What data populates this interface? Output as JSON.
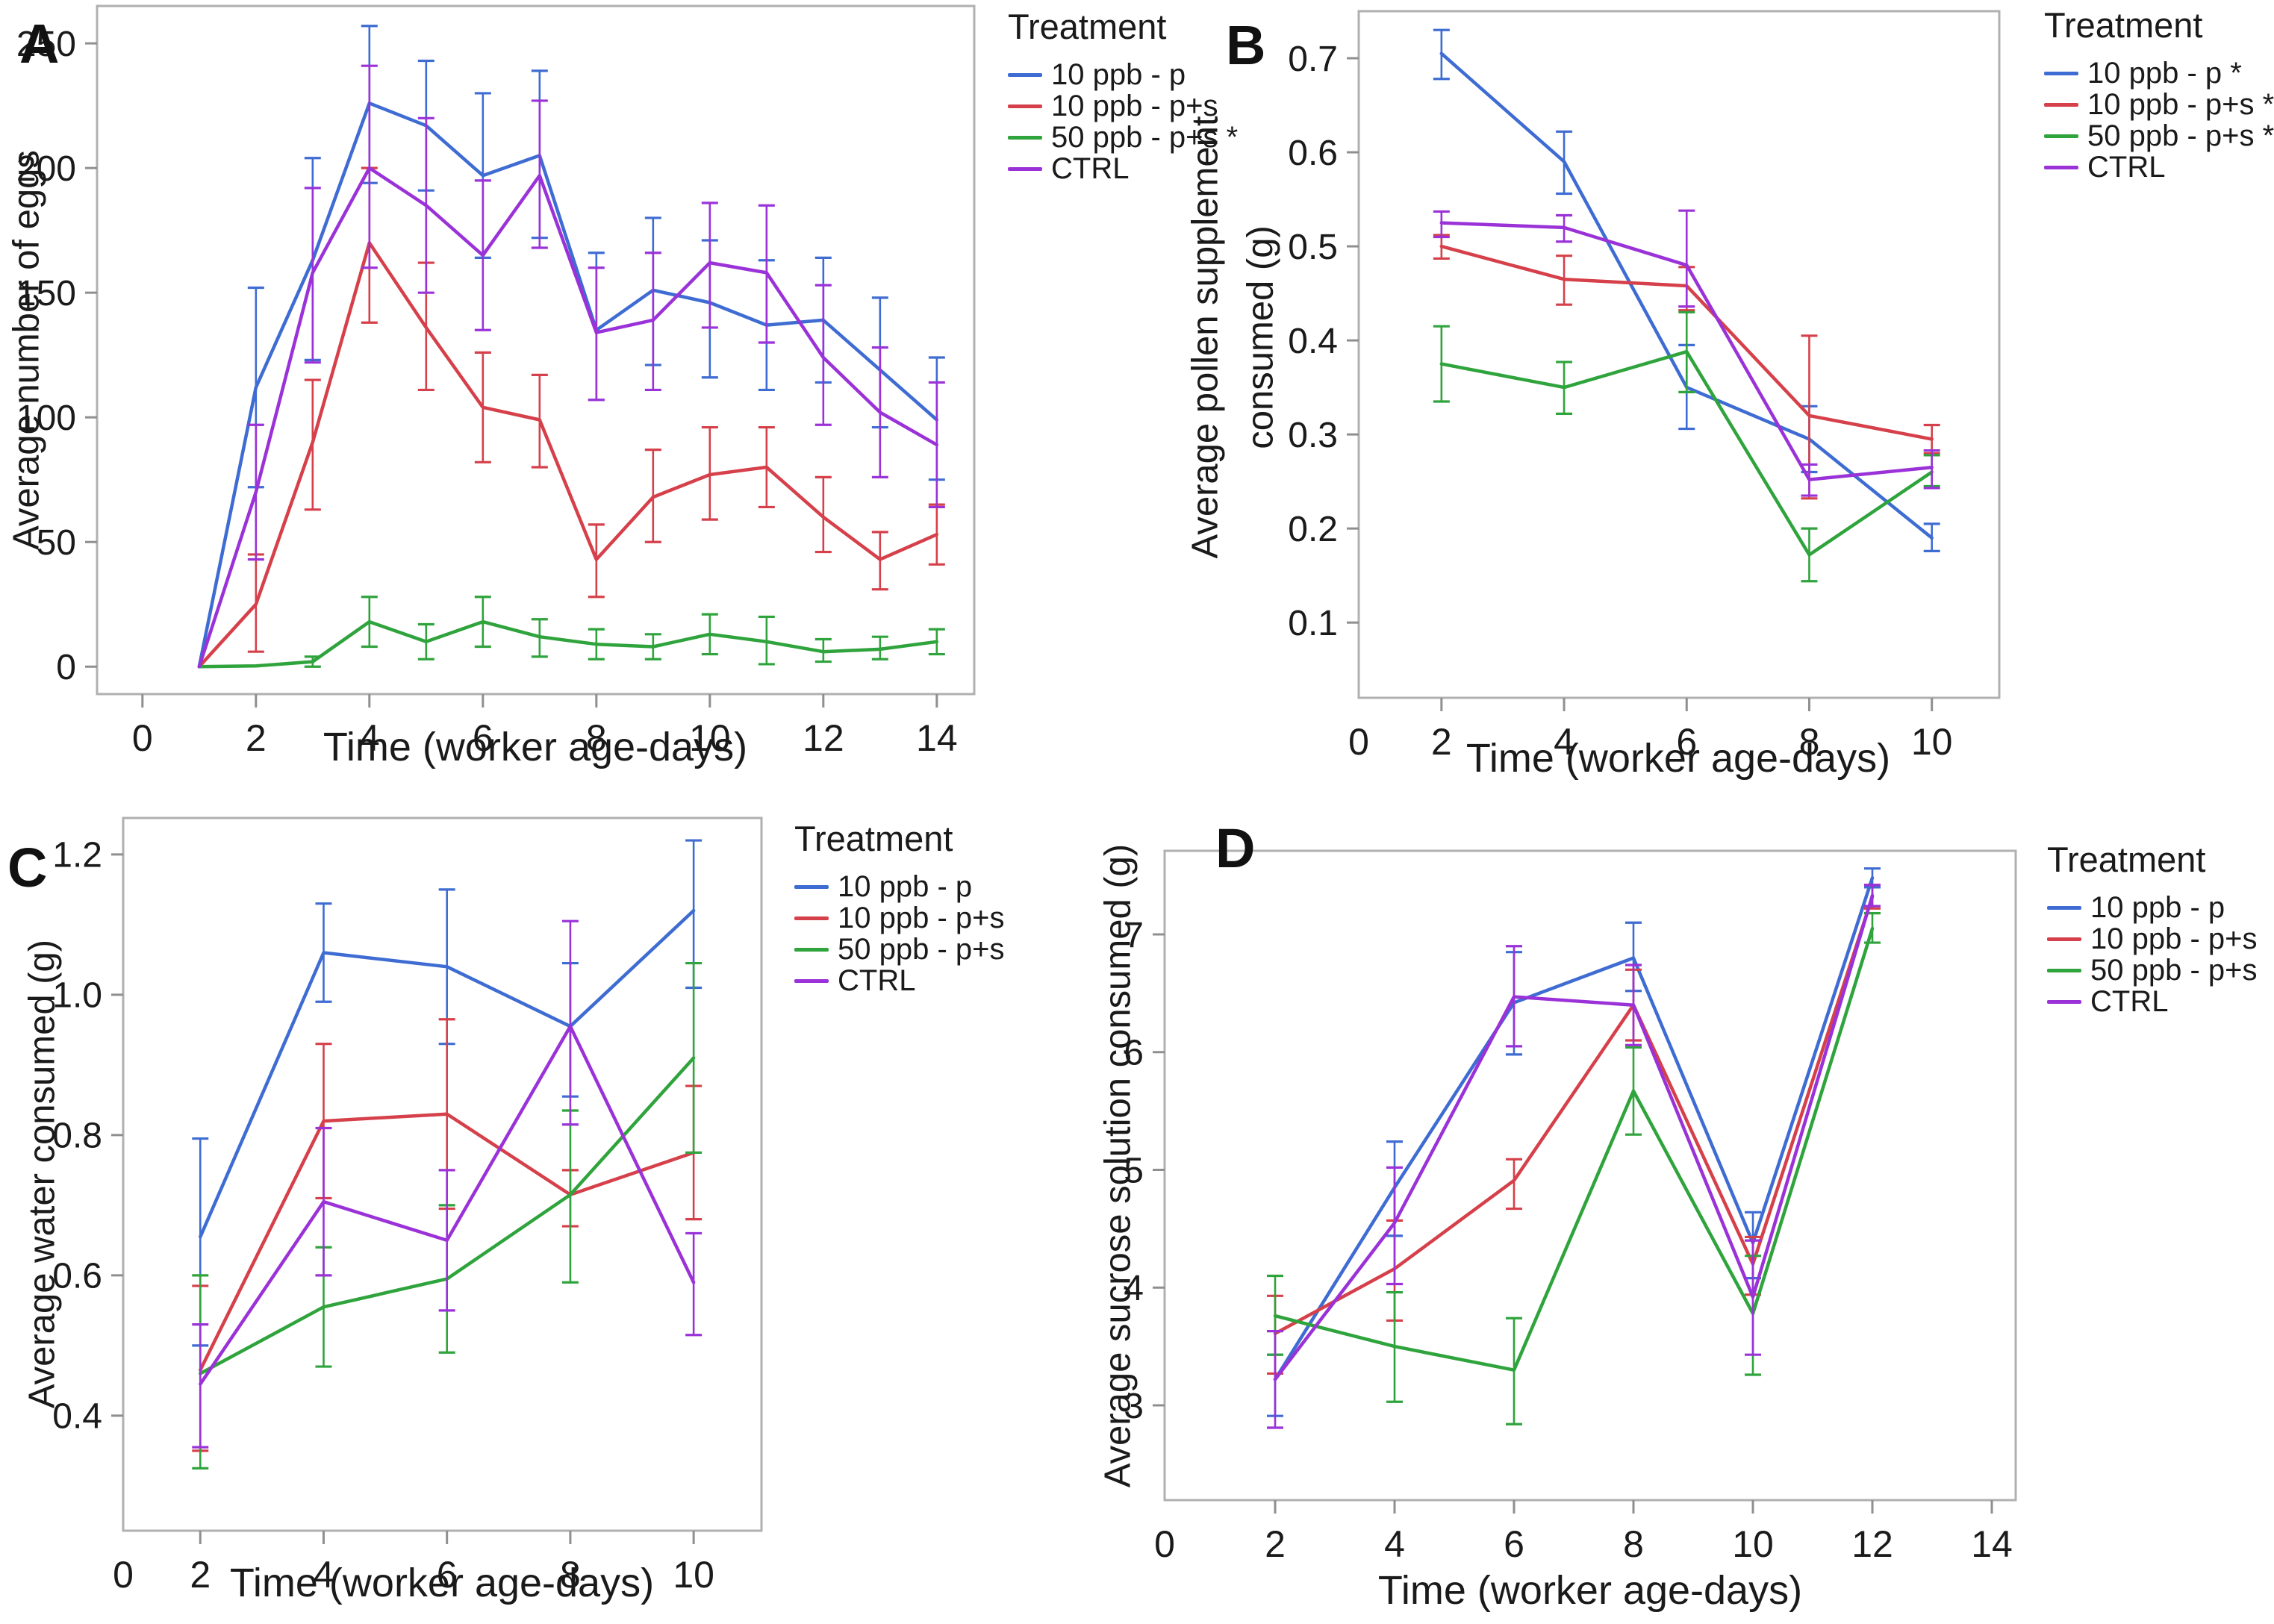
{
  "figure_type": "four-panel line chart with error bars",
  "chart_data": [
    {
      "id": "A",
      "panel_label": "A",
      "type": "line",
      "xlabel": "Time (worker age-days)",
      "ylabel_lines": [
        "Average number of eggs"
      ],
      "legend_title": "Treatment",
      "legend_position": "right",
      "grid": false,
      "xlim": [
        -0.8,
        14.66
      ],
      "ylim": [
        -11,
        265
      ],
      "xticks": [
        0,
        2,
        4,
        6,
        8,
        10,
        12,
        14
      ],
      "xtick_labels": [
        "0",
        "2",
        "4",
        "6",
        "8",
        "10",
        "12",
        "14"
      ],
      "yticks": [
        0,
        50,
        100,
        150,
        200,
        250
      ],
      "ytick_labels": [
        "0",
        "50",
        "100",
        "150",
        "200",
        "250"
      ],
      "series": [
        {
          "name": "10 ppb - p",
          "color": "#3e6cd2",
          "x": [
            1,
            2,
            3,
            4,
            5,
            6,
            7,
            8,
            9,
            10,
            11,
            12,
            13,
            14
          ],
          "y": [
            0,
            112,
            163,
            226,
            217,
            197,
            205,
            135,
            151,
            146,
            137,
            139,
            119,
            99
          ],
          "err_lo": [
            0,
            72,
            123,
            194,
            191,
            164,
            172,
            107,
            121,
            116,
            111,
            114,
            96,
            75
          ],
          "err_hi": [
            0,
            152,
            204,
            257,
            243,
            230,
            239,
            166,
            180,
            171,
            163,
            164,
            148,
            124
          ]
        },
        {
          "name": "10 ppb - p+s",
          "color": "#d5404a",
          "x": [
            1,
            2,
            3,
            4,
            5,
            6,
            7,
            8,
            9,
            10,
            11,
            12,
            13,
            14
          ],
          "y": [
            0,
            25,
            90,
            170,
            136,
            104,
            99,
            43,
            68,
            77,
            80,
            60,
            43,
            53
          ],
          "err_lo": [
            0,
            6,
            63,
            138,
            111,
            82,
            80,
            28,
            50,
            59,
            64,
            46,
            31,
            41
          ],
          "err_hi": [
            0,
            45,
            115,
            200,
            162,
            126,
            117,
            57,
            87,
            96,
            96,
            76,
            54,
            65
          ]
        },
        {
          "name": "50 ppb - p+s *",
          "color": "#2fa33c",
          "x": [
            1,
            2,
            3,
            4,
            5,
            6,
            7,
            8,
            9,
            10,
            11,
            12,
            13,
            14
          ],
          "y": [
            0,
            0.3,
            2,
            18,
            10,
            18,
            12,
            9,
            8,
            13,
            10,
            6,
            7,
            10
          ],
          "err_lo": [
            0,
            0.3,
            0,
            8,
            3,
            8,
            4,
            3,
            3,
            5,
            1,
            2,
            3,
            5
          ],
          "err_hi": [
            0,
            0.3,
            4,
            28,
            17,
            28,
            19,
            15,
            13,
            21,
            20,
            11,
            12,
            15
          ]
        },
        {
          "name": "CTRL",
          "color": "#9a32d8",
          "x": [
            1,
            2,
            3,
            4,
            5,
            6,
            7,
            8,
            9,
            10,
            11,
            12,
            13,
            14
          ],
          "y": [
            0,
            70,
            158,
            200,
            185,
            165,
            197,
            134,
            139,
            162,
            158,
            124,
            102,
            89
          ],
          "err_lo": [
            0,
            43,
            122,
            160,
            150,
            135,
            168,
            107,
            111,
            136,
            130,
            97,
            76,
            64
          ],
          "err_hi": [
            0,
            97,
            192,
            241,
            220,
            195,
            227,
            160,
            166,
            186,
            185,
            153,
            128,
            114
          ]
        }
      ]
    },
    {
      "id": "B",
      "panel_label": "B",
      "type": "line",
      "xlabel": "Time (worker age-days)",
      "ylabel_lines": [
        "Average pollen supplement",
        "consumed (g)"
      ],
      "legend_title": "Treatment",
      "legend_position": "right",
      "grid": false,
      "xlim": [
        0.65,
        11.1
      ],
      "ylim": [
        0.02,
        0.75
      ],
      "xticks": [
        0,
        2,
        4,
        6,
        8,
        10
      ],
      "xtick_labels": [
        "0",
        "2",
        "4",
        "6",
        "8",
        "10"
      ],
      "yticks": [
        0.1,
        0.2,
        0.3,
        0.4,
        0.5,
        0.6,
        0.7
      ],
      "ytick_labels": [
        "0.1",
        "0.2",
        "0.3",
        "0.4",
        "0.5",
        "0.6",
        "0.7"
      ],
      "series": [
        {
          "name": "10 ppb - p *",
          "color": "#3e6cd2",
          "x": [
            2,
            4,
            6,
            8,
            10
          ],
          "y": [
            0.705,
            0.59,
            0.35,
            0.295,
            0.19
          ],
          "err_lo": [
            0.678,
            0.556,
            0.306,
            0.26,
            0.176
          ],
          "err_hi": [
            0.73,
            0.622,
            0.395,
            0.33,
            0.205
          ]
        },
        {
          "name": "10 ppb - p+s *",
          "color": "#d5404a",
          "x": [
            2,
            4,
            6,
            8,
            10
          ],
          "y": [
            0.5,
            0.465,
            0.458,
            0.32,
            0.295
          ],
          "err_lo": [
            0.487,
            0.438,
            0.432,
            0.232,
            0.28
          ],
          "err_hi": [
            0.512,
            0.49,
            0.478,
            0.405,
            0.31
          ]
        },
        {
          "name": "50 ppb - p+s *",
          "color": "#2fa33c",
          "x": [
            2,
            4,
            6,
            8,
            10
          ],
          "y": [
            0.375,
            0.35,
            0.388,
            0.172,
            0.26
          ],
          "err_lo": [
            0.335,
            0.322,
            0.345,
            0.144,
            0.245
          ],
          "err_hi": [
            0.415,
            0.377,
            0.43,
            0.2,
            0.278
          ]
        },
        {
          "name": "CTRL",
          "color": "#9a32d8",
          "x": [
            2,
            4,
            6,
            8,
            10
          ],
          "y": [
            0.525,
            0.52,
            0.48,
            0.252,
            0.265
          ],
          "err_lo": [
            0.51,
            0.505,
            0.436,
            0.235,
            0.243
          ],
          "err_hi": [
            0.537,
            0.533,
            0.538,
            0.268,
            0.283
          ]
        }
      ]
    },
    {
      "id": "C",
      "panel_label": "C",
      "type": "line",
      "xlabel": "Time (worker age-days)",
      "ylabel_lines": [
        "Average water consumed (g)"
      ],
      "legend_title": "Treatment",
      "legend_position": "right",
      "grid": false,
      "xlim": [
        0.75,
        11.1
      ],
      "ylim": [
        0.236,
        1.252
      ],
      "xticks": [
        0,
        2,
        4,
        6,
        8,
        10
      ],
      "xtick_labels": [
        "0",
        "2",
        "4",
        "6",
        "8",
        "10"
      ],
      "yticks": [
        0.4,
        0.6,
        0.8,
        1.0,
        1.2
      ],
      "ytick_labels": [
        "0.4",
        "0.6",
        "0.8",
        "1.0",
        "1.2"
      ],
      "series": [
        {
          "name": "10 ppb - p",
          "color": "#3e6cd2",
          "x": [
            2,
            4,
            6,
            8,
            10
          ],
          "y": [
            0.655,
            1.06,
            1.04,
            0.955,
            1.12
          ],
          "err_lo": [
            0.5,
            0.99,
            0.93,
            0.855,
            1.01
          ],
          "err_hi": [
            0.795,
            1.13,
            1.15,
            1.045,
            1.22
          ]
        },
        {
          "name": "10 ppb - p+s",
          "color": "#d5404a",
          "x": [
            2,
            4,
            6,
            8,
            10
          ],
          "y": [
            0.465,
            0.82,
            0.83,
            0.715,
            0.775
          ],
          "err_lo": [
            0.35,
            0.71,
            0.695,
            0.67,
            0.68
          ],
          "err_hi": [
            0.585,
            0.93,
            0.965,
            0.75,
            0.87
          ]
        },
        {
          "name": "50 ppb - p+s",
          "color": "#2fa33c",
          "x": [
            2,
            4,
            6,
            8,
            10
          ],
          "y": [
            0.46,
            0.555,
            0.595,
            0.715,
            0.91
          ],
          "err_lo": [
            0.325,
            0.47,
            0.49,
            0.59,
            0.775
          ],
          "err_hi": [
            0.6,
            0.64,
            0.7,
            0.835,
            1.045
          ]
        },
        {
          "name": "CTRL",
          "color": "#9a32d8",
          "x": [
            2,
            4,
            6,
            8,
            10
          ],
          "y": [
            0.445,
            0.705,
            0.65,
            0.955,
            0.59
          ],
          "err_lo": [
            0.355,
            0.6,
            0.55,
            0.815,
            0.515
          ],
          "err_hi": [
            0.53,
            0.81,
            0.75,
            1.105,
            0.66
          ]
        }
      ]
    },
    {
      "id": "D",
      "panel_label": "D",
      "type": "line",
      "xlabel": "Time (worker age-days)",
      "ylabel_lines": [
        "Average sucrose solution consumed (g)"
      ],
      "legend_title": "Treatment",
      "legend_position": "right",
      "grid": false,
      "xlim": [
        0.15,
        14.4
      ],
      "ylim": [
        2.195,
        7.71
      ],
      "xticks": [
        0,
        2,
        4,
        6,
        8,
        10,
        12,
        14
      ],
      "xtick_labels": [
        "0",
        "2",
        "4",
        "6",
        "8",
        "10",
        "12",
        "14"
      ],
      "yticks": [
        3,
        4,
        5,
        6,
        7
      ],
      "ytick_labels": [
        "3",
        "4",
        "5",
        "6",
        "7"
      ],
      "series": [
        {
          "name": "10 ppb - p",
          "color": "#3e6cd2",
          "x": [
            2,
            4,
            6,
            8,
            10,
            12
          ],
          "y": [
            3.22,
            4.85,
            6.42,
            6.8,
            4.38,
            7.48
          ],
          "err_lo": [
            2.91,
            4.44,
            5.98,
            6.52,
            4.08,
            7.4
          ],
          "err_hi": [
            3.43,
            5.24,
            6.85,
            7.1,
            4.64,
            7.56
          ]
        },
        {
          "name": "10 ppb - p+s",
          "color": "#d5404a",
          "x": [
            2,
            4,
            6,
            8,
            10,
            12
          ],
          "y": [
            3.61,
            4.16,
            4.91,
            6.4,
            4.2,
            7.32
          ],
          "err_lo": [
            3.27,
            3.72,
            4.67,
            6.1,
            3.94,
            7.22
          ],
          "err_hi": [
            3.93,
            4.57,
            5.09,
            6.7,
            4.43,
            7.42
          ]
        },
        {
          "name": "50 ppb - p+s",
          "color": "#2fa33c",
          "x": [
            2,
            4,
            6,
            8,
            10,
            12
          ],
          "y": [
            3.76,
            3.5,
            3.3,
            5.67,
            3.78,
            7.05
          ],
          "err_lo": [
            3.43,
            3.03,
            2.84,
            5.3,
            3.26,
            6.93
          ],
          "err_hi": [
            4.1,
            3.96,
            3.74,
            6.04,
            4.27,
            7.18
          ]
        },
        {
          "name": "CTRL",
          "color": "#9a32d8",
          "x": [
            2,
            4,
            6,
            8,
            10,
            12
          ],
          "y": [
            3.22,
            4.55,
            6.47,
            6.4,
            3.92,
            7.33
          ],
          "err_lo": [
            2.81,
            4.03,
            6.05,
            6.06,
            3.43,
            7.24
          ],
          "err_hi": [
            3.63,
            5.02,
            6.9,
            6.74,
            4.4,
            7.42
          ]
        }
      ]
    }
  ],
  "style": {
    "frame_color": "#b0b0b0",
    "tick_color": "#8f8f8f",
    "text_color": "#1a1a1a"
  }
}
